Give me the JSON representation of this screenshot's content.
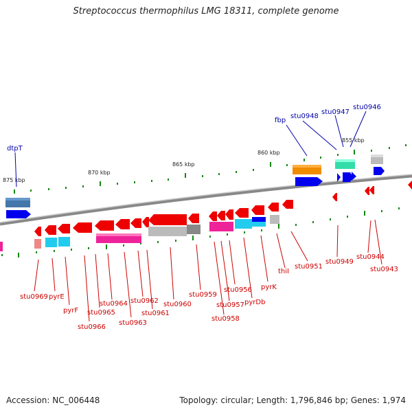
{
  "title": "Streptococcus thermophilus LMG 18311, complete genome",
  "footer": {
    "accession": "Accession: NC_006448",
    "topology": "Topology: circular; Length: 1,796,846 bp; Genes: 1,974"
  },
  "kbp_labels": [
    "875 kbp",
    "870 kbp",
    "865 kbp",
    "860 kbp",
    "855 kbp"
  ],
  "labels_top": [
    "dtpT",
    "fbp",
    "stu0948",
    "stu0947",
    "stu0946"
  ],
  "labels_bottom": [
    "stu0969",
    "pyrE",
    "pyrF",
    "stu0966",
    "stu0965",
    "stu0964",
    "stu0963",
    "stu0962",
    "stu0961",
    "stu0960",
    "stu0959",
    "stu0958",
    "stu0957",
    "stu0956",
    "pyrDb",
    "pyrK",
    "thiI",
    "stu0951",
    "stu0949",
    "stu0944",
    "stu0943"
  ],
  "colors": {
    "forward": "#0000ee",
    "reverse": "#ee0000",
    "orange": "#f08c00",
    "teal": "#33ddaa",
    "magenta": "#ee2299",
    "cyan": "#22ccee",
    "grey": "#bbbbbb",
    "darkgrey": "#888888",
    "steel": "#4477aa",
    "pink": "#ee8888",
    "tick": "#118811",
    "backbone": "#888888",
    "label_top": "#0000aa",
    "label_bottom": "#cc0000"
  }
}
